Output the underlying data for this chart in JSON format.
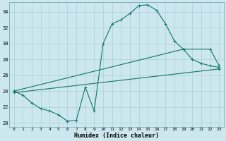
{
  "xlabel": "Humidex (Indice chaleur)",
  "background_color": "#cce8ee",
  "grid_color": "#aacfd8",
  "line_color": "#1a7a6e",
  "xlim": [
    -0.5,
    23.5
  ],
  "ylim": [
    19.5,
    35.2
  ],
  "yticks": [
    20,
    22,
    24,
    26,
    28,
    30,
    32,
    34
  ],
  "xticks": [
    0,
    1,
    2,
    3,
    4,
    5,
    6,
    7,
    8,
    9,
    10,
    11,
    12,
    13,
    14,
    15,
    16,
    17,
    18,
    19,
    20,
    21,
    22,
    23
  ],
  "line1_x": [
    0,
    1,
    2,
    3,
    4,
    5,
    6,
    7,
    8,
    9,
    10,
    11,
    12,
    13,
    14,
    15,
    16,
    17,
    18,
    19,
    20,
    21,
    22,
    23
  ],
  "line1_y": [
    24.0,
    23.5,
    22.5,
    21.8,
    21.5,
    21.0,
    20.2,
    20.3,
    24.5,
    21.5,
    30.0,
    32.5,
    33.0,
    33.8,
    34.8,
    34.9,
    34.2,
    32.5,
    30.3,
    29.3,
    28.0,
    27.5,
    27.2,
    27.0
  ],
  "line2_x": [
    0,
    19,
    22,
    23
  ],
  "line2_y": [
    24.0,
    29.3,
    29.3,
    27.2
  ],
  "line3_x": [
    0,
    23
  ],
  "line3_y": [
    23.8,
    26.8
  ]
}
